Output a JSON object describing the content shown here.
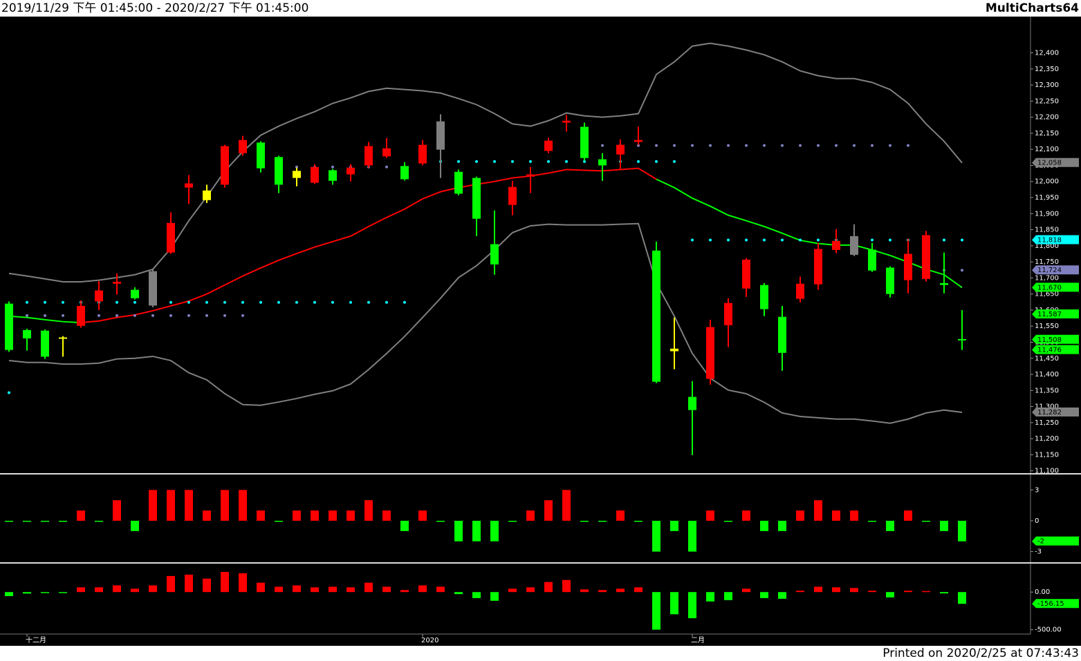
{
  "header": {
    "range": "2019/11/29 下午 01:45:00 - 2020/2/27 下午 01:45:00",
    "app": "MultiCharts64"
  },
  "footer": "Printed on 2020/2/25 at 07:43:43",
  "chart_data": [
    {
      "type": "candlestick",
      "open": [
        11620,
        11538,
        11536,
        11515,
        11551,
        11627,
        11682,
        11663,
        11614,
        11779,
        11981,
        11972,
        11990,
        12088,
        12121,
        12076,
        12033,
        11996,
        12035,
        12022,
        12050,
        12078,
        12048,
        12056,
        12187,
        12030,
        12011,
        11805,
        11927,
        12015,
        12095,
        12183,
        12170,
        12069,
        12084,
        12123,
        11785,
        11480,
        11330,
        11386,
        11553,
        11667,
        11678,
        11579,
        11635,
        11680,
        11787,
        11830,
        11788,
        11732,
        11693,
        11697,
        11684,
        11510
      ],
      "high": [
        11627,
        11542,
        11540,
        11519,
        11630,
        11690,
        11714,
        11671,
        11727,
        11904,
        12020,
        11990,
        12114,
        12142,
        12125,
        12080,
        12043,
        12054,
        12039,
        12054,
        12123,
        12135,
        12060,
        12129,
        12209,
        12037,
        12015,
        11910,
        12002,
        12045,
        12136,
        12207,
        12183,
        12088,
        12131,
        12170,
        11813,
        11577,
        11379,
        11570,
        11637,
        11762,
        11684,
        11613,
        11704,
        11809,
        11852,
        11867,
        11809,
        11736,
        11822,
        11846,
        11779,
        11600
      ],
      "low": [
        11470,
        11474,
        11448,
        11455,
        11545,
        11600,
        11648,
        11633,
        11609,
        11775,
        11930,
        11933,
        11981,
        12080,
        12028,
        11964,
        11985,
        11992,
        11990,
        12000,
        12043,
        12073,
        12003,
        12050,
        12011,
        11957,
        11830,
        11710,
        11895,
        11964,
        12088,
        12155,
        12065,
        12002,
        12039,
        12114,
        11373,
        11416,
        11149,
        11368,
        11485,
        11641,
        11581,
        11411,
        11624,
        11663,
        11777,
        11768,
        11719,
        11639,
        11652,
        11689,
        11652,
        11476
      ],
      "close": [
        11476,
        11512,
        11455,
        11513,
        11613,
        11661,
        11688,
        11637,
        11721,
        11871,
        11994,
        11942,
        12110,
        12129,
        12041,
        11990,
        12011,
        12045,
        12002,
        12043,
        12110,
        12103,
        12007,
        12114,
        12099,
        11962,
        11884,
        11742,
        11983,
        12022,
        12127,
        12189,
        12073,
        12050,
        12114,
        12129,
        11377,
        11472,
        11289,
        11547,
        11622,
        11757,
        11603,
        11467,
        11682,
        11790,
        11815,
        11772,
        11723,
        11650,
        11775,
        11833,
        11678,
        11508
      ],
      "colors": [
        "#00ff00",
        "#00ff00",
        "#00ff00",
        "#ffff00",
        "#ff0000",
        "#ff0000",
        "#ff0000",
        "#00ff00",
        "#808080",
        "#ff0000",
        "#ff0000",
        "#ffff00",
        "#ff0000",
        "#ff0000",
        "#00ff00",
        "#00ff00",
        "#ffff00",
        "#ff0000",
        "#00ff00",
        "#ff0000",
        "#ff0000",
        "#ff0000",
        "#00ff00",
        "#ff0000",
        "#808080",
        "#00ff00",
        "#00ff00",
        "#00ff00",
        "#ff0000",
        "#ff0000",
        "#ff0000",
        "#ff0000",
        "#00ff00",
        "#00ff00",
        "#ff0000",
        "#ff0000",
        "#00ff00",
        "#ffff00",
        "#00ff00",
        "#ff0000",
        "#ff0000",
        "#ff0000",
        "#00ff00",
        "#00ff00",
        "#ff0000",
        "#ff0000",
        "#ff0000",
        "#808080",
        "#00ff00",
        "#00ff00",
        "#ff0000",
        "#ff0000",
        "#00ff00",
        "#00ff00"
      ],
      "series": [
        {
          "style": "line",
          "color": "#808080",
          "values": [
            11714,
            11706,
            11697,
            11688,
            11688,
            11693,
            11701,
            11710,
            11727,
            11792,
            11878,
            11953,
            12032,
            12093,
            12144,
            12172,
            12196,
            12217,
            12243,
            12260,
            12280,
            12290,
            12286,
            12282,
            12275,
            12258,
            12239,
            12211,
            12179,
            12172,
            12189,
            12213,
            12204,
            12200,
            12204,
            12211,
            12333,
            12372,
            12421,
            12430,
            12421,
            12409,
            12394,
            12372,
            12344,
            12329,
            12320,
            12320,
            12308,
            12286,
            12243,
            12179,
            12125,
            12058
          ]
        },
        {
          "style": "line",
          "colors": [
            "#00ff00",
            "#00ff00",
            "#00ff00",
            "#00ff00",
            "#ff0000",
            "#ff0000",
            "#ff0000",
            "#ff0000",
            "#ff0000",
            "#ff0000",
            "#ff0000",
            "#ff0000",
            "#ff0000",
            "#ff0000",
            "#ff0000",
            "#ff0000",
            "#ff0000",
            "#ff0000",
            "#ff0000",
            "#ff0000",
            "#ff0000",
            "#ff0000",
            "#ff0000",
            "#ff0000",
            "#ff0000",
            "#ff0000",
            "#ff0000",
            "#ff0000",
            "#ff0000",
            "#ff0000",
            "#ff0000",
            "#ff0000",
            "#ff0000",
            "#ff0000",
            "#ff0000",
            "#ff0000",
            "#00ff00",
            "#00ff00",
            "#00ff00",
            "#00ff00",
            "#00ff00",
            "#00ff00",
            "#00ff00",
            "#00ff00",
            "#00ff00",
            "#00ff00",
            "#00ff00",
            "#00ff00",
            "#00ff00",
            "#00ff00",
            "#00ff00",
            "#00ff00",
            "#00ff00",
            "#00ff00"
          ],
          "values": [
            11581,
            11577,
            11570,
            11564,
            11561,
            11566,
            11577,
            11585,
            11598,
            11613,
            11628,
            11650,
            11678,
            11706,
            11731,
            11755,
            11776,
            11796,
            11813,
            11830,
            11860,
            11888,
            11914,
            11946,
            11968,
            11981,
            11991,
            12000,
            12011,
            12017,
            12026,
            12037,
            12035,
            12033,
            12037,
            12041,
            12007,
            11981,
            11948,
            11923,
            11895,
            11878,
            11860,
            11839,
            11817,
            11807,
            11802,
            11802,
            11787,
            11770,
            11749,
            11727,
            11710,
            11670
          ]
        },
        {
          "style": "line",
          "color": "#808080",
          "values": [
            11443,
            11437,
            11437,
            11432,
            11432,
            11435,
            11448,
            11450,
            11456,
            11443,
            11405,
            11383,
            11340,
            11306,
            11304,
            11314,
            11325,
            11338,
            11349,
            11370,
            11415,
            11465,
            11518,
            11577,
            11637,
            11701,
            11738,
            11787,
            11841,
            11862,
            11867,
            11865,
            11865,
            11865,
            11867,
            11869,
            11684,
            11581,
            11465,
            11388,
            11351,
            11340,
            11313,
            11280,
            11269,
            11265,
            11261,
            11261,
            11255,
            11248,
            11261,
            11280,
            11289,
            11282
          ]
        },
        {
          "style": "dots",
          "color": "#00ffff",
          "values": [
            11343,
            11624,
            11624,
            11624,
            11624,
            11624,
            11624,
            11624,
            11624,
            11624,
            11624,
            11624,
            11624,
            11624,
            11624,
            11624,
            11624,
            11624,
            11624,
            11624,
            11624,
            11624,
            11624,
            12062,
            12062,
            12062,
            12062,
            12062,
            12062,
            12062,
            12062,
            12062,
            12062,
            12062,
            12062,
            12062,
            12062,
            12062,
            11818,
            11818,
            11818,
            11818,
            11818,
            11818,
            11818,
            11818,
            11818,
            11818,
            11818,
            11818,
            11818,
            11818,
            11818,
            11818
          ]
        },
        {
          "style": "dots",
          "color": "#8080c0",
          "values": [
            null,
            11583,
            11583,
            11583,
            11583,
            11583,
            11583,
            11583,
            11583,
            11583,
            11583,
            11583,
            11583,
            11583,
            12045,
            12045,
            12045,
            12045,
            12045,
            12045,
            12045,
            12045,
            12045,
            null,
            null,
            null,
            null,
            null,
            null,
            null,
            null,
            null,
            null,
            12112,
            12112,
            12112,
            12112,
            12112,
            12112,
            12112,
            12112,
            12112,
            12112,
            12112,
            12112,
            12112,
            12112,
            12112,
            12112,
            12112,
            12112,
            null,
            11724,
            11724
          ]
        }
      ],
      "ylim": [
        11095,
        12500
      ],
      "yticks": [
        {
          "value": 11100,
          "label": "11,100"
        },
        {
          "value": 11150,
          "label": "11,150"
        },
        {
          "value": 11200,
          "label": "11,200"
        },
        {
          "value": 11250,
          "label": "11,250"
        },
        {
          "value": 11300,
          "label": "11,300"
        },
        {
          "value": 11350,
          "label": "11,350"
        },
        {
          "value": 11400,
          "label": "11,400"
        },
        {
          "value": 11450,
          "label": "11,450"
        },
        {
          "value": 11500,
          "label": "11,500"
        },
        {
          "value": 11550,
          "label": "11,550"
        },
        {
          "value": 11600,
          "label": "11,600"
        },
        {
          "value": 11650,
          "label": "11,650"
        },
        {
          "value": 11700,
          "label": "11,700"
        },
        {
          "value": 11750,
          "label": "11,750"
        },
        {
          "value": 11800,
          "label": "11,800"
        },
        {
          "value": 11850,
          "label": "11,850"
        },
        {
          "value": 11900,
          "label": "11,900"
        },
        {
          "value": 11950,
          "label": "11,950"
        },
        {
          "value": 12000,
          "label": "12,000"
        },
        {
          "value": 12050,
          "label": "12,050"
        },
        {
          "value": 12100,
          "label": "12,100"
        },
        {
          "value": 12150,
          "label": "12,150"
        },
        {
          "value": 12200,
          "label": "12,200"
        },
        {
          "value": 12250,
          "label": "12,250"
        },
        {
          "value": 12300,
          "label": "12,300"
        },
        {
          "value": 12350,
          "label": "12,350"
        },
        {
          "value": 12400,
          "label": "12,400"
        }
      ],
      "markers": [
        {
          "value": 12058,
          "label": "12,058",
          "color": "#808080"
        },
        {
          "value": 11818,
          "label": "11,818",
          "color": "#00ffff"
        },
        {
          "value": 11724,
          "label": "11,724",
          "color": "#8080c0"
        },
        {
          "value": 11670,
          "label": "11,670",
          "color": "#00ff00"
        },
        {
          "value": 11587,
          "label": "11,587",
          "color": "#00ff00"
        },
        {
          "value": 11508,
          "label": "11,508",
          "color": "#00ff00"
        },
        {
          "value": 11476,
          "label": "11,476",
          "color": "#00ff00"
        },
        {
          "value": 11282,
          "label": "11,282",
          "color": "#808080"
        }
      ]
    },
    {
      "type": "bar",
      "up_color": "#ff0000",
      "down_color": "#00ff00",
      "values": [
        0,
        0,
        0,
        0,
        1,
        0,
        2,
        -1,
        3,
        3,
        3,
        1,
        3,
        3,
        1,
        0,
        1,
        1,
        1,
        1,
        2,
        1,
        -1,
        1,
        0,
        -2,
        -2,
        -2,
        0,
        1,
        2,
        3,
        0,
        0,
        1,
        0,
        -3,
        -1,
        -3,
        1,
        0,
        1,
        -1,
        -1,
        1,
        2,
        1,
        1,
        0,
        -1,
        1,
        0,
        -1,
        -2
      ],
      "ylim": [
        -3.9,
        4.3
      ],
      "yticks": [
        3,
        0,
        -3
      ],
      "markers": [
        {
          "value": -2,
          "color": "#00ff00"
        }
      ]
    },
    {
      "type": "bar",
      "up_color": "#ff0000",
      "down_color": "#00ff00",
      "values": [
        -54,
        -20,
        -5,
        -5,
        63,
        63,
        89,
        45,
        89,
        214,
        232,
        179,
        268,
        250,
        125,
        71,
        89,
        63,
        71,
        63,
        125,
        71,
        27,
        89,
        71,
        -27,
        -80,
        -116,
        45,
        63,
        134,
        161,
        36,
        27,
        45,
        63,
        -500,
        -295,
        -348,
        -125,
        -107,
        45,
        -80,
        -89,
        18,
        71,
        63,
        54,
        18,
        -71,
        18,
        5,
        -18,
        -156.15
      ],
      "categories": [
        null,
        "十二月",
        null,
        null,
        null,
        null,
        null,
        null,
        null,
        null,
        null,
        null,
        null,
        null,
        null,
        null,
        null,
        null,
        null,
        null,
        null,
        null,
        null,
        "2020",
        null,
        null,
        null,
        null,
        null,
        null,
        null,
        null,
        null,
        null,
        null,
        null,
        null,
        null,
        "二月",
        null,
        null,
        null,
        null,
        null,
        null,
        null,
        null,
        null,
        null,
        null,
        null,
        null,
        null,
        null
      ],
      "ylim": [
        -540,
        360
      ],
      "yticks": [
        {
          "value": 0,
          "label": "0.00"
        },
        {
          "value": -500,
          "label": "-500.00"
        }
      ],
      "markers": [
        {
          "value": -156.15,
          "color": "#00ff00"
        }
      ]
    }
  ]
}
